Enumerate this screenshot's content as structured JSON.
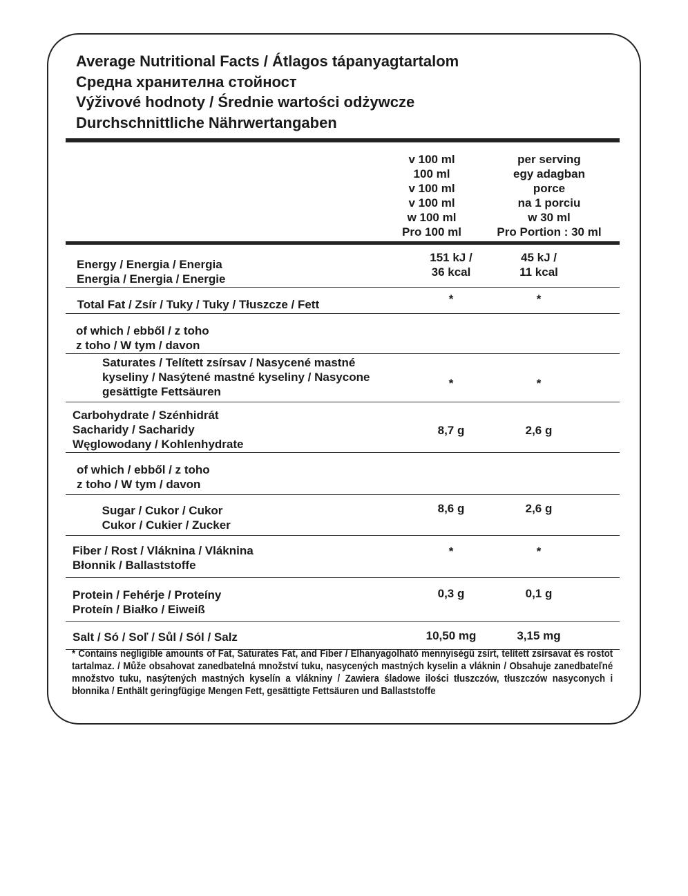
{
  "title": [
    "Average Nutritional Facts / Átlagos tápanyagtartalom",
    "Средна хранителна стойност",
    "Výživové hodnoty / Średnie wartości odżywcze",
    "Durchschnittliche Nährwertangaben"
  ],
  "header": {
    "col1": [
      "v 100 ml",
      "100 ml",
      "v 100 ml",
      "v 100 ml",
      "w 100 ml",
      "Pro 100 ml"
    ],
    "col2": [
      "per serving",
      "egy adagban",
      "porce",
      "na 1 porciu",
      "w 30 ml",
      "Pro Portion : 30 ml"
    ]
  },
  "rows": [
    {
      "label": [
        "Energy / Energia / Energia",
        "Energia / Energia / Energie"
      ],
      "v1": [
        "151 kJ /",
        "36 kcal"
      ],
      "v2": [
        "45 kJ /",
        "11 kcal"
      ]
    },
    {
      "label": [
        "Total Fat / Zsír / Tuky / Tuky / Tłuszcze / Fett"
      ],
      "v1": [
        "*"
      ],
      "v2": [
        "*"
      ]
    },
    {
      "label": [
        "of which / ebből / z toho",
        "z toho / W tym / davon"
      ],
      "v1": [],
      "v2": []
    },
    {
      "label": [
        "Saturates / Telített zsírsav / Nasycené mastné",
        "kyseliny / Nasýtené mastné kyseliny / Nasycone",
        "gesättigte Fettsäuren"
      ],
      "v1": [
        "*"
      ],
      "v2": [
        "*"
      ]
    },
    {
      "label": [
        "Carbohydrate /  Szénhidrát",
        "Sacharidy / Sacharidy",
        "Węglowodany / Kohlenhydrate"
      ],
      "v1": [
        "8,7 g"
      ],
      "v2": [
        "2,6 g"
      ]
    },
    {
      "label": [
        "of which / ebből / z toho",
        "z toho / W tym / davon"
      ],
      "v1": [],
      "v2": []
    },
    {
      "label": [
        "Sugar / Cukor /  Cukor",
        "Cukor / Cukier / Zucker"
      ],
      "v1": [
        "8,6 g"
      ],
      "v2": [
        "2,6 g"
      ]
    },
    {
      "label": [
        "Fiber / Rost / Vláknina / Vláknina",
        "Błonnik / Ballaststoffe"
      ],
      "v1": [
        "*"
      ],
      "v2": [
        "*"
      ]
    },
    {
      "label": [
        "Protein /  Fehérje / Proteíny",
        "Proteín / Białko / Eiweiß"
      ],
      "v1": [
        "0,3 g"
      ],
      "v2": [
        "0,1 g"
      ]
    },
    {
      "label": [
        "Salt / Só / Soľ / Sůl / Sól / Salz"
      ],
      "v1": [
        "10,50 mg"
      ],
      "v2": [
        "3,15 mg"
      ]
    }
  ],
  "footnote": "* Contains negligible amounts of Fat, Saturates Fat, and Fiber /  Elhanyagolható mennyiségű zsírt, telített zsírsavat és rostot tartalmaz. / Může obsahovat zanedbatelná množství tuku, nasycených mastných kyselin a vláknin / Obsahuje zanedbateľné množstvo tuku, nasýtených mastných kyselín a vlákniny / Zawiera śladowe ilości tłuszczów, tłuszczów nasyconych i błonnika / Enthält geringfügige Mengen Fett, gesättigte Fettsäuren und Ballaststoffe"
}
